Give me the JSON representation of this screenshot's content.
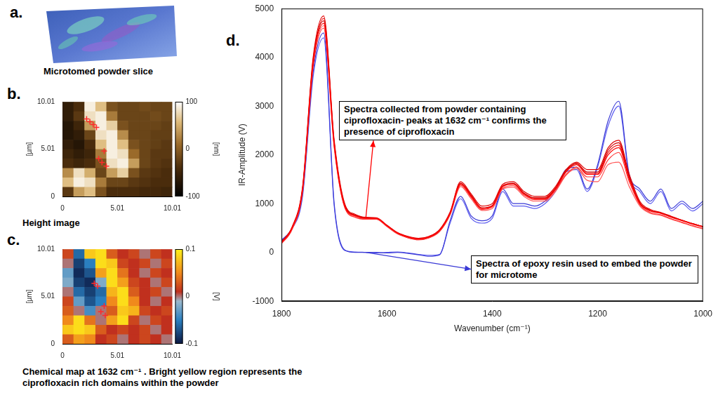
{
  "image_panel": {
    "label": "a.",
    "caption": "Microtomed powder slice"
  },
  "chart_data": [
    {
      "label": "b.",
      "type": "heatmap",
      "caption": "Height image",
      "xlim": [
        0,
        10.01
      ],
      "xticks": [
        0,
        5.01,
        10.01
      ],
      "ylim": [
        0,
        10.01
      ],
      "yticks": [
        0,
        5.01,
        10.01
      ],
      "y_label": "[µm]",
      "cell_x": [
        0.5,
        1.5,
        2.5,
        3.5,
        4.5,
        5.5,
        6.5,
        7.5,
        8.5,
        9.5
      ],
      "cell_y": [
        9.5,
        8.5,
        7.5,
        6.5,
        5.5,
        4.5,
        3.5,
        2.5,
        1.5,
        0.5
      ],
      "cells": [
        [
          -60,
          -40,
          90,
          60,
          -10,
          -20,
          -20,
          -15,
          -20,
          -20
        ],
        [
          -60,
          -30,
          80,
          90,
          20,
          -20,
          -20,
          -20,
          -15,
          -20
        ],
        [
          -70,
          -50,
          40,
          90,
          70,
          -10,
          -20,
          -20,
          -20,
          -25
        ],
        [
          -70,
          -60,
          -20,
          80,
          90,
          30,
          -20,
          -20,
          -25,
          -25
        ],
        [
          -60,
          -70,
          -40,
          60,
          90,
          60,
          -10,
          -20,
          -25,
          -30
        ],
        [
          -50,
          -60,
          -50,
          20,
          90,
          80,
          10,
          -20,
          -30,
          -30
        ],
        [
          -40,
          -50,
          -40,
          -10,
          80,
          90,
          40,
          -20,
          -30,
          -35
        ],
        [
          30,
          80,
          50,
          -20,
          40,
          70,
          -10,
          -30,
          -35,
          -40
        ],
        [
          60,
          90,
          80,
          20,
          -20,
          -20,
          -30,
          -35,
          -40,
          -40
        ],
        [
          -30,
          40,
          60,
          -10,
          -40,
          -40,
          -40,
          -45,
          -45,
          -50
        ]
      ],
      "colorbar": {
        "range": [
          -100,
          100
        ],
        "ticks": [
          100,
          0,
          -100
        ],
        "label": "[nm]"
      },
      "points": {
        "x": [
          2.2,
          2.5,
          2.8,
          3.1,
          3.8,
          3.3,
          3.6,
          4.0
        ],
        "y": [
          8.2,
          7.9,
          7.6,
          7.3,
          4.8,
          4.0,
          3.6,
          3.2
        ],
        "color": "#ff2a2a",
        "marker": "cross"
      }
    },
    {
      "label": "c.",
      "type": "heatmap",
      "caption": "Chemical map at 1632 cm⁻¹ . Bright yellow region represents the ciprofloxacin rich domains within the powder",
      "xlim": [
        0,
        10.01
      ],
      "xticks": [
        0,
        5.01,
        10.01
      ],
      "ylim": [
        0,
        10.01
      ],
      "yticks": [
        0,
        5.01,
        10.01
      ],
      "y_label": "[µm]",
      "cell_x": [
        0.5,
        1.5,
        2.5,
        3.5,
        4.5,
        5.5,
        6.5,
        7.5,
        8.5,
        9.5
      ],
      "cell_y": [
        9.5,
        8.5,
        7.5,
        6.5,
        5.5,
        4.5,
        3.5,
        2.5,
        1.5,
        0.5
      ],
      "cells": [
        [
          0.02,
          -0.06,
          0.08,
          0.09,
          0.03,
          0.01,
          0.02,
          0.0,
          0.02,
          0.01
        ],
        [
          0.0,
          -0.08,
          -0.05,
          0.09,
          0.08,
          0.02,
          0.01,
          0.02,
          0.0,
          0.02
        ],
        [
          -0.03,
          -0.09,
          -0.07,
          0.06,
          0.09,
          0.04,
          0.01,
          0.0,
          0.02,
          0.01
        ],
        [
          -0.02,
          -0.08,
          -0.09,
          -0.02,
          0.09,
          0.06,
          0.02,
          0.01,
          0.0,
          0.02
        ],
        [
          0.0,
          -0.06,
          -0.08,
          -0.06,
          0.07,
          0.09,
          0.03,
          0.01,
          0.02,
          0.0
        ],
        [
          0.02,
          -0.03,
          -0.07,
          -0.05,
          0.05,
          0.09,
          0.05,
          0.01,
          0.0,
          0.01
        ],
        [
          0.03,
          0.0,
          -0.04,
          0.0,
          0.03,
          0.08,
          0.07,
          0.02,
          0.01,
          0.02
        ],
        [
          0.05,
          0.09,
          0.04,
          0.0,
          0.06,
          0.09,
          0.02,
          0.0,
          0.02,
          0.01
        ],
        [
          0.08,
          0.09,
          0.08,
          0.03,
          0.01,
          0.02,
          0.01,
          0.02,
          0.0,
          0.01
        ],
        [
          0.03,
          0.06,
          0.05,
          0.01,
          0.02,
          0.0,
          0.01,
          0.02,
          0.01,
          0.0
        ]
      ],
      "colorbar": {
        "range": [
          -0.1,
          0.1
        ],
        "ticks": [
          0.1,
          0,
          -0.1
        ],
        "label": "[V]"
      },
      "points": {
        "x": [
          2.9,
          3.2,
          3.8,
          3.5,
          3.9
        ],
        "y": [
          6.4,
          6.1,
          4.0,
          3.4,
          3.0
        ],
        "color": "#ff2a2a",
        "marker": "cross"
      }
    },
    {
      "label": "d.",
      "type": "line",
      "x_label": "Wavenumber (cm⁻¹)",
      "y_label": "IR-Amplitude (V)",
      "xlim": [
        1800,
        1000
      ],
      "xticks": [
        1800,
        1600,
        1400,
        1200,
        1000
      ],
      "ylim": [
        -1000,
        5000
      ],
      "yticks": [
        -1000,
        0,
        1000,
        2000,
        3000,
        4000,
        5000
      ],
      "grid": false,
      "x": [
        1800,
        1780,
        1760,
        1740,
        1720,
        1700,
        1680,
        1660,
        1640,
        1620,
        1600,
        1580,
        1560,
        1540,
        1520,
        1500,
        1480,
        1460,
        1440,
        1420,
        1400,
        1380,
        1360,
        1340,
        1320,
        1300,
        1280,
        1260,
        1240,
        1220,
        1200,
        1180,
        1160,
        1140,
        1120,
        1100,
        1080,
        1060,
        1040,
        1020,
        1000
      ],
      "series": [
        {
          "color": "#ff0000",
          "values": [
            200,
            500,
            1300,
            3900,
            4700,
            2200,
            950,
            750,
            700,
            700,
            550,
            400,
            320,
            280,
            320,
            450,
            800,
            1400,
            1150,
            900,
            950,
            1350,
            1400,
            1200,
            1100,
            1100,
            1300,
            1650,
            1800,
            1600,
            1600,
            2000,
            2150,
            1500,
            1000,
            850,
            800,
            720,
            650,
            580,
            520
          ]
        },
        {
          "color": "#e00000",
          "values": [
            220,
            520,
            1350,
            4000,
            4850,
            2300,
            1000,
            780,
            720,
            710,
            560,
            410,
            330,
            290,
            330,
            470,
            830,
            1450,
            1200,
            950,
            1000,
            1400,
            1450,
            1250,
            1150,
            1150,
            1350,
            1700,
            1850,
            1700,
            1700,
            2150,
            2300,
            1600,
            1050,
            880,
            820,
            740,
            660,
            590,
            530
          ]
        },
        {
          "color": "#ff3030",
          "values": [
            180,
            470,
            1250,
            3800,
            4600,
            2150,
            920,
            720,
            680,
            680,
            530,
            380,
            300,
            260,
            300,
            430,
            780,
            1380,
            1130,
            880,
            930,
            1320,
            1370,
            1180,
            1080,
            1080,
            1280,
            1600,
            1750,
            1550,
            1550,
            1900,
            2050,
            1450,
            980,
            820,
            770,
            690,
            620,
            550,
            490
          ]
        },
        {
          "color": "#cc0000",
          "values": [
            210,
            510,
            1320,
            3950,
            4750,
            2250,
            970,
            760,
            710,
            700,
            550,
            400,
            310,
            270,
            310,
            440,
            800,
            1420,
            1170,
            910,
            960,
            1360,
            1420,
            1220,
            1120,
            1120,
            1320,
            1680,
            1820,
            1650,
            1650,
            2100,
            2250,
            1550,
            1020,
            860,
            810,
            730,
            660,
            590,
            530
          ]
        },
        {
          "color": "#ff5a5a",
          "values": [
            190,
            480,
            1280,
            3850,
            4650,
            2180,
            930,
            740,
            690,
            690,
            540,
            390,
            300,
            260,
            300,
            430,
            770,
            1350,
            1100,
            860,
            900,
            1300,
            1340,
            1150,
            1050,
            1050,
            1250,
            1580,
            1720,
            1480,
            1450,
            1800,
            1850,
            1350,
            950,
            800,
            760,
            680,
            610,
            540,
            480
          ]
        },
        {
          "color": "#f01818",
          "values": [
            200,
            500,
            1300,
            3900,
            4800,
            2250,
            960,
            760,
            710,
            700,
            550,
            400,
            320,
            280,
            320,
            450,
            810,
            1420,
            1160,
            910,
            960,
            1370,
            1410,
            1210,
            1110,
            1110,
            1310,
            1660,
            1830,
            1620,
            1620,
            2050,
            2200,
            1520,
            1010,
            860,
            810,
            730,
            660,
            590,
            530
          ]
        },
        {
          "color": "#3a3ad6",
          "values": [
            250,
            500,
            1200,
            3700,
            4500,
            1000,
            50,
            0,
            0,
            0,
            -10,
            0,
            -20,
            -50,
            -80,
            -50,
            650,
            1150,
            750,
            650,
            750,
            1300,
            1000,
            1000,
            950,
            1050,
            1300,
            1700,
            1750,
            1300,
            1800,
            2700,
            3100,
            1600,
            1300,
            1050,
            1300,
            900,
            1050,
            900,
            1050
          ]
        },
        {
          "color": "#5c5cf0",
          "values": [
            230,
            480,
            1150,
            3600,
            4400,
            950,
            40,
            10,
            0,
            -10,
            0,
            10,
            -10,
            -40,
            -60,
            -40,
            600,
            1100,
            700,
            600,
            700,
            1250,
            950,
            950,
            900,
            1000,
            1250,
            1650,
            1700,
            1250,
            1750,
            2600,
            3000,
            1550,
            1250,
            1000,
            1250,
            850,
            1000,
            850,
            1000
          ]
        }
      ],
      "annotations": [
        {
          "text": "Spectra collected from powder containing ciprofloxacin- peaks at 1632 cm⁻¹ confirms the presence of ciprofloxacin",
          "color": "#ff0000"
        },
        {
          "text": "Spectra of epoxy resin used to embed the powder for microtome",
          "color": "#3a3ad6"
        }
      ]
    }
  ]
}
